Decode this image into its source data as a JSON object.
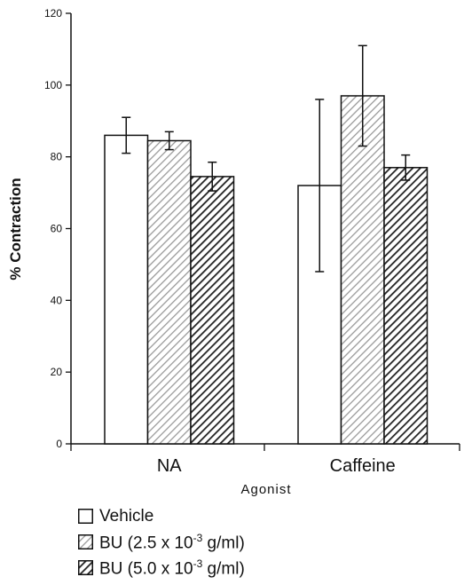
{
  "chart_data": {
    "type": "bar",
    "xlabel": "Agonist",
    "ylabel": "% Contraction",
    "ylim": [
      0,
      120
    ],
    "yticks": [
      0,
      20,
      40,
      60,
      80,
      100,
      120
    ],
    "categories": [
      "NA",
      "Caffeine"
    ],
    "series": [
      {
        "name": "Vehicle",
        "values": [
          86,
          72
        ],
        "errors": [
          5,
          24
        ],
        "fill": "white"
      },
      {
        "name": "BU (2.5 x 10-3 g/ml)",
        "values": [
          84.5,
          97
        ],
        "errors": [
          2.5,
          14
        ],
        "fill": "light-hatch"
      },
      {
        "name": "BU (5.0 x 10-3 g/ml)",
        "values": [
          74.5,
          77
        ],
        "errors": [
          4,
          3.5
        ],
        "fill": "dark-hatch"
      }
    ],
    "grid": false,
    "legend_position": "bottom-left"
  },
  "legend": {
    "items": [
      {
        "text": "Vehicle",
        "prefix": "",
        "sup": "",
        "suffix": ""
      },
      {
        "text": "",
        "prefix": "BU (2.5 x 10",
        "sup": "-3",
        "suffix": " g/ml)"
      },
      {
        "text": "",
        "prefix": "BU (5.0 x 10",
        "sup": "-3",
        "suffix": " g/ml)"
      }
    ]
  },
  "colors": {
    "axis": "#111111",
    "bar_stroke": "#111111",
    "light_hatch": "#9a9a9a",
    "dark_hatch": "#222222"
  }
}
